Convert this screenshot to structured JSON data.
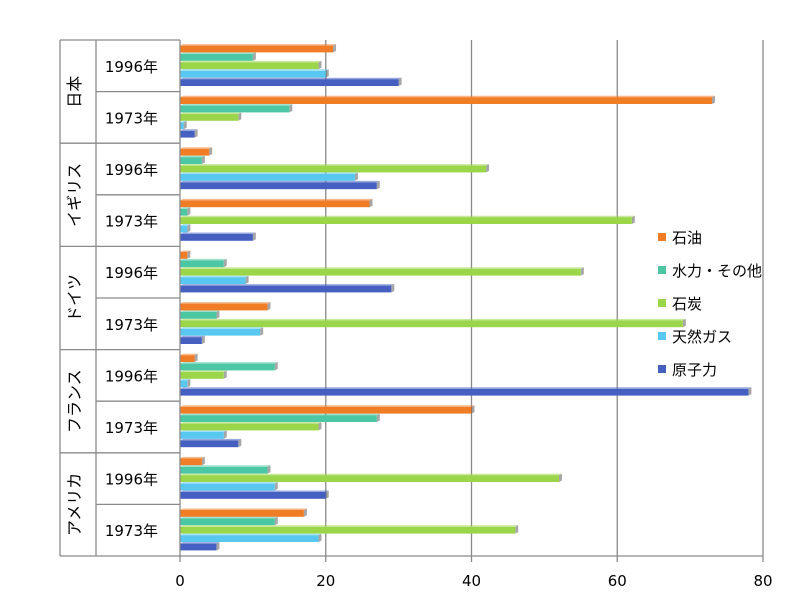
{
  "chart_data": {
    "type": "bar",
    "orientation": "horizontal",
    "title": "",
    "xlabel": "",
    "ylabel": "",
    "xlim": [
      0,
      80
    ],
    "x_ticks": [
      "0",
      "20",
      "40",
      "60",
      "80"
    ],
    "grid": true,
    "legend_position": "right",
    "groups": [
      "日本",
      "イギリス",
      "ドイツ",
      "フランス",
      "アメリカ"
    ],
    "years": [
      "1996年",
      "1973年"
    ],
    "series": [
      {
        "name": "石油",
        "color": "#f07c26"
      },
      {
        "name": "水力・その他",
        "color": "#4cc7a3"
      },
      {
        "name": "石炭",
        "color": "#9bd64a"
      },
      {
        "name": "天然ガス",
        "color": "#58c8f0"
      },
      {
        "name": "原子力",
        "color": "#4560c0"
      }
    ],
    "rows": [
      {
        "group": "日本",
        "year": "1996年",
        "values": [
          21,
          10,
          19,
          20,
          30
        ]
      },
      {
        "group": "日本",
        "year": "1973年",
        "values": [
          73,
          15,
          8,
          0.5,
          2
        ]
      },
      {
        "group": "イギリス",
        "year": "1996年",
        "values": [
          4,
          3,
          42,
          24,
          27
        ]
      },
      {
        "group": "イギリス",
        "year": "1973年",
        "values": [
          26,
          1,
          62,
          1,
          10
        ]
      },
      {
        "group": "ドイツ",
        "year": "1996年",
        "values": [
          1,
          6,
          55,
          9,
          29
        ]
      },
      {
        "group": "ドイツ",
        "year": "1973年",
        "values": [
          12,
          5,
          69,
          11,
          3
        ]
      },
      {
        "group": "フランス",
        "year": "1996年",
        "values": [
          2,
          13,
          6,
          1,
          78
        ]
      },
      {
        "group": "フランス",
        "year": "1973年",
        "values": [
          40,
          27,
          19,
          6,
          8
        ]
      },
      {
        "group": "アメリカ",
        "year": "1996年",
        "values": [
          3,
          12,
          52,
          13,
          20
        ]
      },
      {
        "group": "アメリカ",
        "year": "1973年",
        "values": [
          17,
          13,
          46,
          19,
          5
        ]
      }
    ]
  }
}
